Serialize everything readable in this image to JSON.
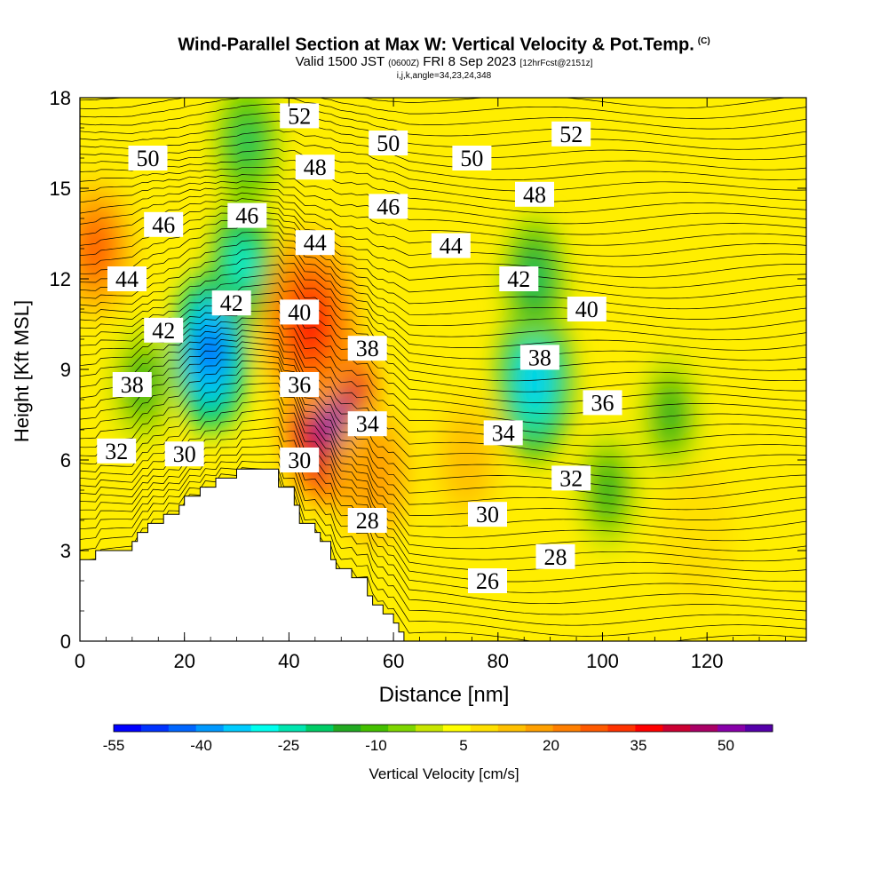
{
  "header": {
    "title": "Wind-Parallel Section at Max W: Vertical Velocity & Pot.Temp.",
    "title_tag": "(C)",
    "valid_prefix": "Valid 1500 JST",
    "valid_utc": "(0600Z)",
    "valid_date": "FRI 8 Sep 2023",
    "forecast_tag": "[12hrFcst@2151z]",
    "indices": "i,j,k,angle=34,23,24,348"
  },
  "chart_data": {
    "type": "heatmap",
    "title": "Wind-Parallel Section at Max W: Vertical Velocity & Pot.Temp.",
    "xlabel": "Distance [nm]",
    "ylabel": "Height [Kft MSL]",
    "xlim": [
      0,
      139
    ],
    "ylim": [
      0,
      18
    ],
    "x_ticks": [
      0,
      20,
      40,
      60,
      80,
      100,
      120
    ],
    "y_ticks": [
      0,
      3,
      6,
      9,
      12,
      15,
      18
    ],
    "colorbar": {
      "label": "Vertical Velocity [cm/s]",
      "tick_labels": [
        -55,
        -40,
        -25,
        -10,
        5,
        20,
        35,
        50
      ],
      "min": -55,
      "max": 58,
      "colors": [
        "#0000ff",
        "#0033ff",
        "#0066ff",
        "#0099ff",
        "#00ccff",
        "#00ffee",
        "#00e6b0",
        "#00cc66",
        "#22aa22",
        "#44c000",
        "#7ed600",
        "#c8e600",
        "#ffff00",
        "#ffe000",
        "#ffc000",
        "#ffa000",
        "#ff7f00",
        "#ff5a00",
        "#ff3300",
        "#ff0000",
        "#cc0033",
        "#aa0066",
        "#8800aa",
        "#5500aa"
      ]
    },
    "velocity_features": [
      {
        "x": 25,
        "y": 9.6,
        "value": -55
      },
      {
        "x": 31,
        "y": 12.5,
        "value": -32
      },
      {
        "x": 32,
        "y": 16.5,
        "value": -22
      },
      {
        "x": 12,
        "y": 8.5,
        "value": -15
      },
      {
        "x": 3,
        "y": 13,
        "value": 30
      },
      {
        "x": 48,
        "y": 7.5,
        "value": 58
      },
      {
        "x": 44,
        "y": 10.5,
        "value": 38
      },
      {
        "x": 56,
        "y": 5.5,
        "value": 22
      },
      {
        "x": 87,
        "y": 8.6,
        "value": -38
      },
      {
        "x": 87,
        "y": 12,
        "value": -25
      },
      {
        "x": 101,
        "y": 5,
        "value": -15
      },
      {
        "x": 113,
        "y": 7.5,
        "value": -15
      },
      {
        "x": 74,
        "y": 6,
        "value": 15
      },
      {
        "x": 118,
        "y": 3.5,
        "value": 10
      }
    ],
    "theta_labels": [
      {
        "text": "52",
        "x": 42,
        "y": 17.4
      },
      {
        "text": "52",
        "x": 94,
        "y": 16.8
      },
      {
        "text": "50",
        "x": 13,
        "y": 16.0
      },
      {
        "text": "50",
        "x": 59,
        "y": 16.5
      },
      {
        "text": "50",
        "x": 75,
        "y": 16.0
      },
      {
        "text": "48",
        "x": 45,
        "y": 15.7
      },
      {
        "text": "48",
        "x": 87,
        "y": 14.8
      },
      {
        "text": "46",
        "x": 16,
        "y": 13.8
      },
      {
        "text": "46",
        "x": 32,
        "y": 14.1
      },
      {
        "text": "46",
        "x": 59,
        "y": 14.4
      },
      {
        "text": "44",
        "x": 9,
        "y": 12.0
      },
      {
        "text": "44",
        "x": 45,
        "y": 13.2
      },
      {
        "text": "44",
        "x": 71,
        "y": 13.1
      },
      {
        "text": "42",
        "x": 16,
        "y": 10.3
      },
      {
        "text": "42",
        "x": 29,
        "y": 11.2
      },
      {
        "text": "42",
        "x": 84,
        "y": 12.0
      },
      {
        "text": "40",
        "x": 42,
        "y": 10.9
      },
      {
        "text": "40",
        "x": 97,
        "y": 11.0
      },
      {
        "text": "38",
        "x": 10,
        "y": 8.5
      },
      {
        "text": "38",
        "x": 55,
        "y": 9.7
      },
      {
        "text": "38",
        "x": 88,
        "y": 9.4
      },
      {
        "text": "36",
        "x": 42,
        "y": 8.5
      },
      {
        "text": "36",
        "x": 100,
        "y": 7.9
      },
      {
        "text": "34",
        "x": 55,
        "y": 7.2
      },
      {
        "text": "34",
        "x": 81,
        "y": 6.9
      },
      {
        "text": "32",
        "x": 7,
        "y": 6.3
      },
      {
        "text": "32",
        "x": 94,
        "y": 5.4
      },
      {
        "text": "30",
        "x": 20,
        "y": 6.2
      },
      {
        "text": "30",
        "x": 42,
        "y": 6.0
      },
      {
        "text": "30",
        "x": 78,
        "y": 4.2
      },
      {
        "text": "28",
        "x": 55,
        "y": 4.0
      },
      {
        "text": "28",
        "x": 91,
        "y": 2.8
      },
      {
        "text": "26",
        "x": 78,
        "y": 2.0
      }
    ],
    "terrain": [
      [
        0,
        2.7
      ],
      [
        3,
        2.7
      ],
      [
        3,
        3.0
      ],
      [
        10,
        3.0
      ],
      [
        10,
        3.3
      ],
      [
        11,
        3.3
      ],
      [
        11,
        3.6
      ],
      [
        13,
        3.6
      ],
      [
        13,
        3.9
      ],
      [
        16,
        3.9
      ],
      [
        16,
        4.2
      ],
      [
        19,
        4.2
      ],
      [
        19,
        4.5
      ],
      [
        20,
        4.5
      ],
      [
        20,
        4.8
      ],
      [
        23,
        4.8
      ],
      [
        23,
        5.1
      ],
      [
        26,
        5.1
      ],
      [
        26,
        5.4
      ],
      [
        30,
        5.4
      ],
      [
        30,
        5.7
      ],
      [
        38,
        5.7
      ],
      [
        38,
        5.1
      ],
      [
        41,
        5.1
      ],
      [
        41,
        4.5
      ],
      [
        42,
        4.5
      ],
      [
        42,
        3.9
      ],
      [
        45,
        3.9
      ],
      [
        45,
        3.6
      ],
      [
        46,
        3.6
      ],
      [
        46,
        3.3
      ],
      [
        48,
        3.3
      ],
      [
        48,
        2.7
      ],
      [
        49,
        2.7
      ],
      [
        49,
        2.4
      ],
      [
        52,
        2.4
      ],
      [
        52,
        2.1
      ],
      [
        55,
        2.1
      ],
      [
        55,
        1.5
      ],
      [
        56,
        1.5
      ],
      [
        56,
        1.2
      ],
      [
        58,
        1.2
      ],
      [
        58,
        0.9
      ],
      [
        60,
        0.9
      ],
      [
        60,
        0.6
      ],
      [
        61,
        0.6
      ],
      [
        61,
        0.3
      ],
      [
        62,
        0.3
      ],
      [
        62,
        0
      ]
    ]
  }
}
